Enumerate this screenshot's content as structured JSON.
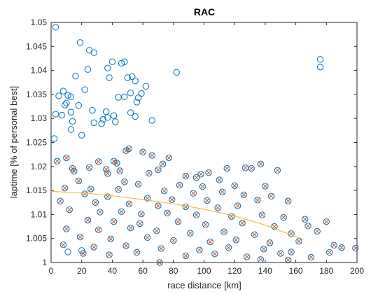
{
  "chart_data": {
    "type": "scatter",
    "title": "RAC",
    "xlabel": "race distance [km]",
    "ylabel": "laptime [% of personal best]",
    "xlim": [
      0,
      200
    ],
    "ylim": [
      1,
      1.05
    ],
    "xticks": [
      "0",
      "20",
      "40",
      "60",
      "80",
      "100",
      "120",
      "140",
      "160",
      "180",
      "200"
    ],
    "yticks": [
      "1",
      "1.005",
      "1.01",
      "1.015",
      "1.02",
      "1.025",
      "1.03",
      "1.035",
      "1.04",
      "1.045",
      "1.05"
    ],
    "grid": false,
    "colors": {
      "circles": "#0072BD",
      "crosses": "#D95319",
      "fit": "#EDB120",
      "axes": "#262626"
    },
    "series": [
      {
        "marker": "circle",
        "points": [
          [
            3,
            1.049
          ],
          [
            19,
            1.0458
          ],
          [
            25,
            1.0442
          ],
          [
            28,
            1.0437
          ],
          [
            46,
            1.0415
          ],
          [
            48,
            1.0418
          ],
          [
            16,
            1.0388
          ],
          [
            37,
            1.0405
          ],
          [
            40,
            1.0418
          ],
          [
            8,
            1.0357
          ],
          [
            22,
            1.036
          ],
          [
            24,
            1.0402
          ],
          [
            38,
            1.0385
          ],
          [
            50,
            1.0385
          ],
          [
            53,
            1.0387
          ],
          [
            55,
            1.0378
          ],
          [
            62,
            1.0367
          ],
          [
            59,
            1.0352
          ],
          [
            48,
            1.0345
          ],
          [
            52,
            1.0353
          ],
          [
            5,
            1.0347
          ],
          [
            11,
            1.0348
          ],
          [
            9,
            1.0328
          ],
          [
            13,
            1.0345
          ],
          [
            18,
            1.0327
          ],
          [
            44,
            1.0344
          ],
          [
            56,
            1.0334
          ],
          [
            57,
            1.0343
          ],
          [
            10,
            1.0332
          ],
          [
            27,
            1.0317
          ],
          [
            36,
            1.0314
          ],
          [
            3,
            1.0309
          ],
          [
            7,
            1.0307
          ],
          [
            13,
            1.0313
          ],
          [
            52,
            1.0312
          ],
          [
            55,
            1.0304
          ],
          [
            37,
            1.0302
          ],
          [
            41,
            1.0306
          ],
          [
            66,
            1.0296
          ],
          [
            82,
            1.0396
          ],
          [
            176,
            1.0423
          ],
          [
            176,
            1.0407
          ],
          [
            14,
            1.0294
          ],
          [
            28,
            1.0291
          ],
          [
            33,
            1.0289
          ],
          [
            34,
            1.0298
          ],
          [
            42,
            1.0293
          ],
          [
            13,
            1.0277
          ],
          [
            20,
            1.0265
          ],
          [
            2,
            1.0258
          ],
          [
            49,
            1.0233
          ],
          [
            51,
            1.0237
          ],
          [
            60,
            1.023
          ],
          [
            66,
            1.0223
          ],
          [
            77,
            1.0218
          ],
          [
            4,
            1.0211
          ],
          [
            10,
            1.0218
          ],
          [
            31,
            1.021
          ],
          [
            41,
            1.0211
          ],
          [
            43,
            1.0207
          ],
          [
            73,
            1.0205
          ],
          [
            14,
            1.0196
          ],
          [
            25,
            1.0198
          ],
          [
            36,
            1.0194
          ],
          [
            45,
            1.0191
          ],
          [
            88,
            1.018
          ],
          [
            98,
            1.0184
          ],
          [
            103,
            1.0187
          ],
          [
            115,
            1.0196
          ],
          [
            127,
            1.0197
          ],
          [
            131,
            1.0196
          ],
          [
            137,
            1.0205
          ],
          [
            148,
            1.0192
          ],
          [
            15,
            1.019
          ],
          [
            37,
            1.0185
          ],
          [
            64,
            1.0186
          ],
          [
            70,
            1.0193
          ],
          [
            95,
            1.0177
          ],
          [
            110,
            1.0172
          ],
          [
            18,
            1.017
          ],
          [
            48,
            1.0168
          ],
          [
            57,
            1.0163
          ],
          [
            84,
            1.0161
          ],
          [
            99,
            1.0158
          ],
          [
            120,
            1.016
          ],
          [
            140,
            1.0159
          ],
          [
            9,
            1.0155
          ],
          [
            26,
            1.0153
          ],
          [
            44,
            1.0152
          ],
          [
            74,
            1.0149
          ],
          [
            93,
            1.0144
          ],
          [
            112,
            1.0147
          ],
          [
            126,
            1.0141
          ],
          [
            144,
            1.0138
          ],
          [
            22,
            1.0143
          ],
          [
            37,
            1.0137
          ],
          [
            63,
            1.0134
          ],
          [
            79,
            1.0131
          ],
          [
            102,
            1.0129
          ],
          [
            135,
            1.013
          ],
          [
            155,
            1.0128
          ],
          [
            6,
            1.0128
          ],
          [
            29,
            1.0125
          ],
          [
            51,
            1.0122
          ],
          [
            70,
            1.0118
          ],
          [
            88,
            1.0116
          ],
          [
            109,
            1.0114
          ],
          [
            122,
            1.0118
          ],
          [
            12,
            1.011
          ],
          [
            32,
            1.0105
          ],
          [
            46,
            1.0106
          ],
          [
            59,
            1.0101
          ],
          [
            76,
            1.0103
          ],
          [
            95,
            1.0099
          ],
          [
            118,
            1.0096
          ],
          [
            138,
            1.0099
          ],
          [
            152,
            1.0094
          ],
          [
            166,
            1.009
          ],
          [
            24,
            1.0088
          ],
          [
            41,
            1.0085
          ],
          [
            58,
            1.0081
          ],
          [
            83,
            1.0085
          ],
          [
            101,
            1.0079
          ],
          [
            125,
            1.0082
          ],
          [
            146,
            1.0075
          ],
          [
            168,
            1.0076
          ],
          [
            180,
            1.0085
          ],
          [
            10,
            1.007
          ],
          [
            31,
            1.0068
          ],
          [
            52,
            1.0072
          ],
          [
            69,
            1.0066
          ],
          [
            91,
            1.0061
          ],
          [
            113,
            1.0064
          ],
          [
            133,
            1.0058
          ],
          [
            157,
            1.006
          ],
          [
            174,
            1.0065
          ],
          [
            19,
            1.0053
          ],
          [
            39,
            1.0049
          ],
          [
            63,
            1.0052
          ],
          [
            80,
            1.0046
          ],
          [
            104,
            1.0043
          ],
          [
            121,
            1.0047
          ],
          [
            143,
            1.0041
          ],
          [
            162,
            1.0044
          ],
          [
            185,
            1.0036
          ],
          [
            8,
            1.0037
          ],
          [
            28,
            1.0032
          ],
          [
            49,
            1.0035
          ],
          [
            72,
            1.0029
          ],
          [
            97,
            1.0026
          ],
          [
            116,
            1.0031
          ],
          [
            139,
            1.0028
          ],
          [
            157,
            1.0022
          ],
          [
            190,
            1.0031
          ],
          [
            199,
            1.003
          ],
          [
            11,
            1.0022
          ],
          [
            20,
            1.0025
          ],
          [
            21,
            1.0019
          ],
          [
            38,
            1.0016
          ],
          [
            56,
            1.0021
          ],
          [
            88,
            1.0014
          ],
          [
            107,
            1.0018
          ],
          [
            128,
            1.0012
          ],
          [
            150,
            1.0019
          ],
          [
            170,
            1.0011
          ],
          [
            182,
            1.0021
          ],
          [
            71,
            1.0
          ],
          [
            137,
            1.0006
          ],
          [
            155,
            1.0005
          ]
        ]
      },
      {
        "marker": "x",
        "points": [
          [
            49,
            1.0233
          ],
          [
            51,
            1.0237
          ],
          [
            60,
            1.023
          ],
          [
            66,
            1.0223
          ],
          [
            77,
            1.0218
          ],
          [
            4,
            1.0211
          ],
          [
            10,
            1.0218
          ],
          [
            31,
            1.021
          ],
          [
            41,
            1.0211
          ],
          [
            43,
            1.0207
          ],
          [
            73,
            1.0205
          ],
          [
            14,
            1.0196
          ],
          [
            25,
            1.0198
          ],
          [
            36,
            1.0194
          ],
          [
            45,
            1.0191
          ],
          [
            88,
            1.018
          ],
          [
            98,
            1.0184
          ],
          [
            103,
            1.0187
          ],
          [
            115,
            1.0196
          ],
          [
            127,
            1.0197
          ],
          [
            131,
            1.0196
          ],
          [
            137,
            1.0205
          ],
          [
            148,
            1.0192
          ],
          [
            15,
            1.019
          ],
          [
            37,
            1.0185
          ],
          [
            64,
            1.0186
          ],
          [
            70,
            1.0193
          ],
          [
            95,
            1.0177
          ],
          [
            110,
            1.0172
          ],
          [
            18,
            1.017
          ],
          [
            48,
            1.0168
          ],
          [
            57,
            1.0163
          ],
          [
            84,
            1.0161
          ],
          [
            99,
            1.0158
          ],
          [
            120,
            1.016
          ],
          [
            140,
            1.0159
          ],
          [
            9,
            1.0155
          ],
          [
            26,
            1.0153
          ],
          [
            44,
            1.0152
          ],
          [
            74,
            1.0149
          ],
          [
            93,
            1.0144
          ],
          [
            112,
            1.0147
          ],
          [
            126,
            1.0141
          ],
          [
            144,
            1.0138
          ],
          [
            22,
            1.0143
          ],
          [
            37,
            1.0137
          ],
          [
            63,
            1.0134
          ],
          [
            79,
            1.0131
          ],
          [
            102,
            1.0129
          ],
          [
            135,
            1.013
          ],
          [
            155,
            1.0128
          ],
          [
            6,
            1.0128
          ],
          [
            29,
            1.0125
          ],
          [
            51,
            1.0122
          ],
          [
            70,
            1.0118
          ],
          [
            88,
            1.0116
          ],
          [
            109,
            1.0114
          ],
          [
            122,
            1.0118
          ],
          [
            12,
            1.011
          ],
          [
            32,
            1.0105
          ],
          [
            46,
            1.0106
          ],
          [
            59,
            1.0101
          ],
          [
            76,
            1.0103
          ],
          [
            95,
            1.0099
          ],
          [
            118,
            1.0096
          ],
          [
            138,
            1.0099
          ],
          [
            152,
            1.0094
          ],
          [
            166,
            1.009
          ],
          [
            24,
            1.0088
          ],
          [
            41,
            1.0085
          ],
          [
            58,
            1.0081
          ],
          [
            83,
            1.0085
          ],
          [
            101,
            1.0079
          ],
          [
            125,
            1.0082
          ],
          [
            146,
            1.0075
          ],
          [
            168,
            1.0076
          ],
          [
            180,
            1.0085
          ],
          [
            10,
            1.007
          ],
          [
            31,
            1.0068
          ],
          [
            52,
            1.0072
          ],
          [
            69,
            1.0066
          ],
          [
            91,
            1.0061
          ],
          [
            113,
            1.0064
          ],
          [
            133,
            1.0058
          ],
          [
            157,
            1.006
          ],
          [
            174,
            1.0065
          ],
          [
            19,
            1.0053
          ],
          [
            39,
            1.0049
          ],
          [
            63,
            1.0052
          ],
          [
            80,
            1.0046
          ],
          [
            104,
            1.0043
          ],
          [
            121,
            1.0047
          ],
          [
            143,
            1.0041
          ],
          [
            162,
            1.0044
          ],
          [
            185,
            1.0036
          ],
          [
            8,
            1.0037
          ],
          [
            28,
            1.0032
          ],
          [
            49,
            1.0035
          ],
          [
            72,
            1.0029
          ],
          [
            97,
            1.0026
          ],
          [
            116,
            1.0031
          ],
          [
            139,
            1.0028
          ],
          [
            157,
            1.0022
          ],
          [
            190,
            1.0031
          ],
          [
            199,
            1.003
          ],
          [
            21,
            1.0019
          ],
          [
            38,
            1.0016
          ],
          [
            56,
            1.0021
          ],
          [
            88,
            1.0014
          ],
          [
            107,
            1.0018
          ],
          [
            128,
            1.0012
          ],
          [
            150,
            1.0019
          ],
          [
            170,
            1.0011
          ],
          [
            182,
            1.0021
          ],
          [
            71,
            1.0
          ],
          [
            137,
            1.0006
          ],
          [
            155,
            1.0005
          ]
        ]
      },
      {
        "marker": "line",
        "points": [
          [
            0,
            1.0148
          ],
          [
            20,
            1.0145
          ],
          [
            40,
            1.0139
          ],
          [
            60,
            1.0131
          ],
          [
            80,
            1.0122
          ],
          [
            100,
            1.0111
          ],
          [
            120,
            1.0097
          ],
          [
            140,
            1.0078
          ],
          [
            165,
            1.0048
          ]
        ]
      }
    ]
  }
}
